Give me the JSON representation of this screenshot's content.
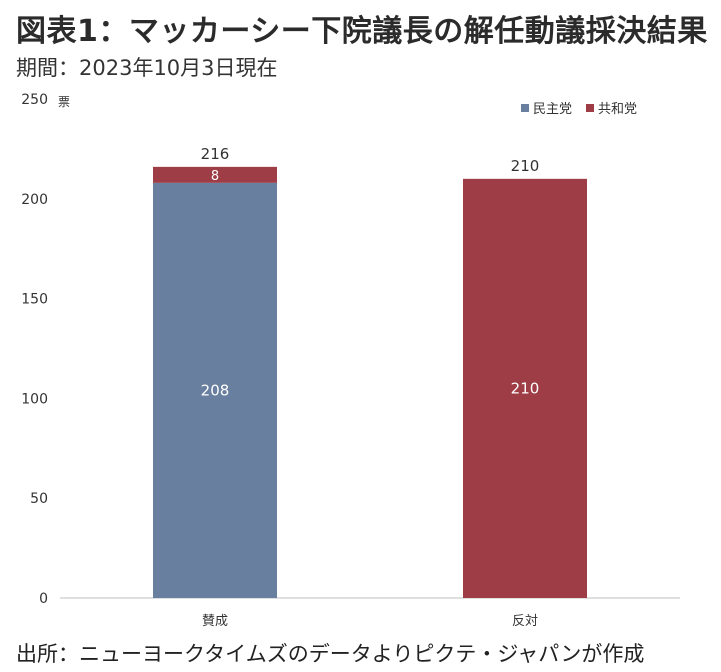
{
  "title": "図表1：マッカーシー下院議長の解任動議採決結果",
  "subtitle": "期間：2023年10月3日現在",
  "source": "出所：ニューヨークタイムズのデータよりピクテ・ジャパンが作成",
  "chart_data": {
    "type": "bar",
    "stacked": true,
    "categories": [
      "賛成",
      "反対"
    ],
    "series": [
      {
        "name": "民主党",
        "values": [
          208,
          0
        ],
        "color": "#687f9f"
      },
      {
        "name": "共和党",
        "values": [
          8,
          210
        ],
        "color": "#9e3d45"
      }
    ],
    "totals": [
      216,
      210
    ],
    "y_unit": "票",
    "ylim": [
      0,
      250
    ],
    "yticks": [
      0,
      50,
      100,
      150,
      200,
      250
    ],
    "grid": false,
    "legend_position": "top-right"
  }
}
